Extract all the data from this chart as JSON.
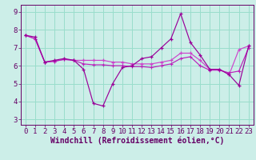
{
  "xlabel": "Windchill (Refroidissement éolien,°C)",
  "x": [
    0,
    1,
    2,
    3,
    4,
    5,
    6,
    7,
    8,
    9,
    10,
    11,
    12,
    13,
    14,
    15,
    16,
    17,
    18,
    19,
    20,
    21,
    22,
    23
  ],
  "line1": [
    7.7,
    7.6,
    6.2,
    6.3,
    6.4,
    6.3,
    5.8,
    3.9,
    3.75,
    5.0,
    5.9,
    6.0,
    6.4,
    6.5,
    7.0,
    7.5,
    8.9,
    7.3,
    6.6,
    5.8,
    5.8,
    5.5,
    4.9,
    7.1
  ],
  "line2": [
    7.7,
    7.5,
    6.2,
    6.25,
    6.35,
    6.3,
    6.3,
    6.3,
    6.3,
    6.2,
    6.2,
    6.1,
    6.1,
    6.1,
    6.2,
    6.3,
    6.7,
    6.7,
    6.3,
    5.8,
    5.8,
    5.5,
    6.9,
    7.1
  ],
  "line3": [
    7.7,
    7.5,
    6.2,
    6.25,
    6.35,
    6.3,
    6.1,
    6.05,
    6.05,
    6.0,
    6.0,
    5.95,
    5.95,
    5.9,
    6.0,
    6.1,
    6.4,
    6.5,
    6.0,
    5.75,
    5.75,
    5.6,
    5.7,
    7.0
  ],
  "bg_color": "#cceee8",
  "line1_color": "#990099",
  "line2_color": "#cc44cc",
  "line3_color": "#bb22bb",
  "grid_color": "#99ddcc",
  "axis_color": "#660066",
  "label_color": "#660066",
  "ylim": [
    2.7,
    9.4
  ],
  "xlim": [
    -0.5,
    23.5
  ],
  "yticks": [
    3,
    4,
    5,
    6,
    7,
    8,
    9
  ],
  "xticks": [
    0,
    1,
    2,
    3,
    4,
    5,
    6,
    7,
    8,
    9,
    10,
    11,
    12,
    13,
    14,
    15,
    16,
    17,
    18,
    19,
    20,
    21,
    22,
    23
  ],
  "tick_fontsize": 6.5,
  "label_fontsize": 7.0
}
